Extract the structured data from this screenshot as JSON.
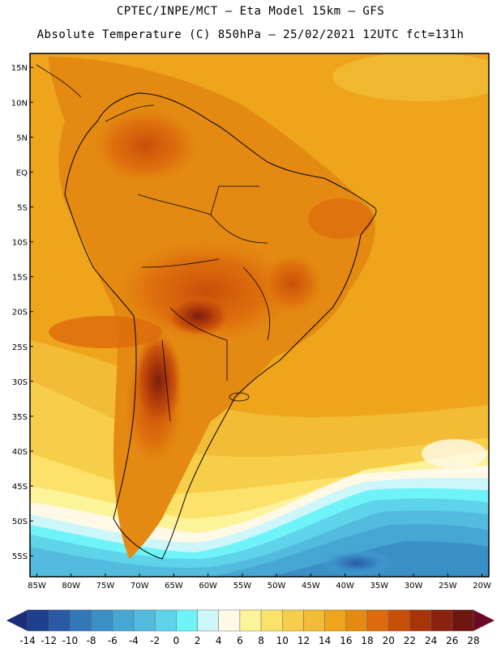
{
  "header": {
    "line1": "CPTEC/INPE/MCT –  Eta Model 15km – GFS",
    "line2": "Absolute Temperature (C) 850hPa – 25/02/2021 12UTC fct=131h"
  },
  "map": {
    "lat_labels": [
      "15N",
      "10N",
      "5N",
      "EQ",
      "5S",
      "10S",
      "15S",
      "20S",
      "25S",
      "30S",
      "35S",
      "40S",
      "45S",
      "50S",
      "55S"
    ],
    "lon_labels": [
      "85W",
      "80W",
      "75W",
      "70W",
      "65W",
      "60W",
      "55W",
      "50W",
      "45W",
      "40W",
      "35W",
      "30W",
      "25W",
      "20W"
    ],
    "lat_range": [
      15,
      -55
    ],
    "lon_range": [
      -85,
      -20
    ]
  },
  "colorbar": {
    "labels": [
      "-14",
      "-12",
      "-10",
      "-8",
      "-6",
      "-4",
      "-2",
      "0",
      "2",
      "4",
      "6",
      "8",
      "10",
      "12",
      "14",
      "16",
      "18",
      "20",
      "22",
      "24",
      "26",
      "28"
    ],
    "colors": [
      "#1c3f8e",
      "#2a5aa6",
      "#3277b8",
      "#3a8fc7",
      "#46a6d4",
      "#52bbde",
      "#5fd3e9",
      "#6ef4f8",
      "#cdf6fb",
      "#fff9e6",
      "#fdf39a",
      "#fce26a",
      "#f7ce4a",
      "#f2bc36",
      "#eea51c",
      "#e48a12",
      "#dd6a0c",
      "#c84e0a",
      "#a8350a",
      "#8b2210",
      "#6e1610"
    ],
    "low_arrow_color": "#1c2c7a",
    "high_arrow_color": "#6b0a26"
  }
}
